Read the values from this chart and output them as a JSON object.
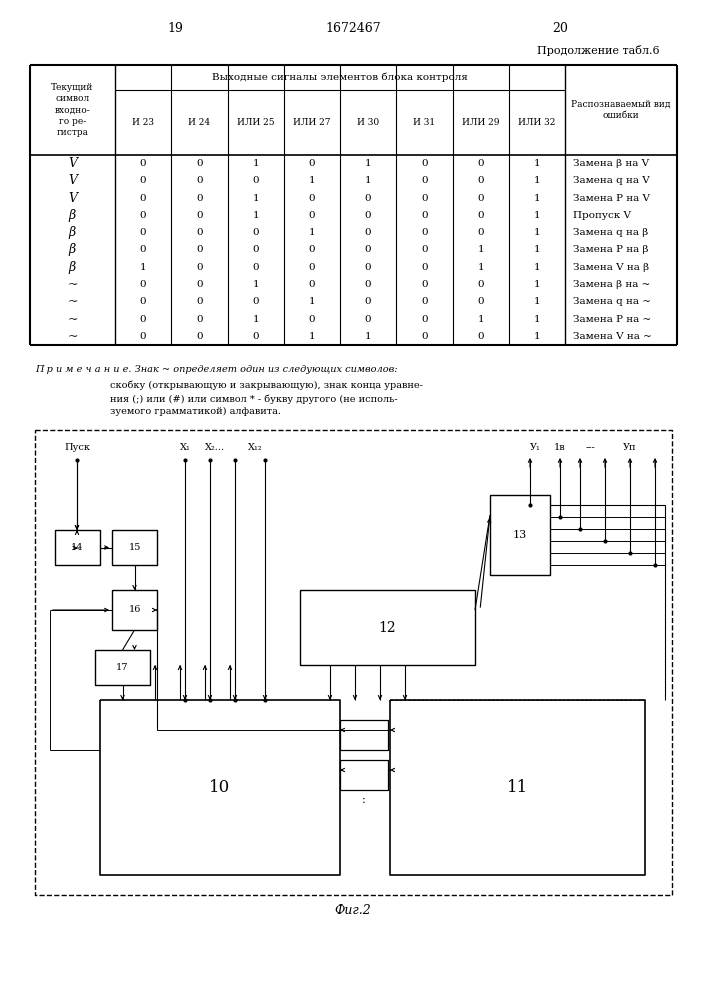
{
  "page_num_left": "19",
  "page_num_center": "1672467",
  "page_num_right": "20",
  "table_title": "Продолжение табл.6",
  "col_header_group": "Выходные сигналы элементов блока контроля",
  "col0_header": "Текущий\nсимвол\nвходно-\nго ре-\nгистра",
  "sub_headers": [
    "И 23",
    "И 24",
    "ИЛИ 25",
    "ИЛИ 27",
    "И 30",
    "И 31",
    "ИЛИ 29",
    "ИЛИ 32"
  ],
  "last_col_header": "Распознаваемый вид\nошибки",
  "rows": [
    [
      "V",
      "0",
      "0",
      "1",
      "0",
      "1",
      "0",
      "0",
      "1",
      "Замена β на V"
    ],
    [
      "V",
      "0",
      "0",
      "0",
      "1",
      "1",
      "0",
      "0",
      "1",
      "Замена q на V"
    ],
    [
      "V",
      "0",
      "0",
      "1",
      "0",
      "0",
      "0",
      "0",
      "1",
      "Замена P на V"
    ],
    [
      "β",
      "0",
      "0",
      "1",
      "0",
      "0",
      "0",
      "0",
      "1",
      "Пропуск V"
    ],
    [
      "β",
      "0",
      "0",
      "0",
      "1",
      "0",
      "0",
      "0",
      "1",
      "Замена q на β"
    ],
    [
      "β",
      "0",
      "0",
      "0",
      "0",
      "0",
      "0",
      "1",
      "1",
      "Замена P на β"
    ],
    [
      "β",
      "1",
      "0",
      "0",
      "0",
      "0",
      "0",
      "1",
      "1",
      "Замена V на β"
    ],
    [
      "~",
      "0",
      "0",
      "1",
      "0",
      "0",
      "0",
      "0",
      "1",
      "Замена β на ~"
    ],
    [
      "~",
      "0",
      "0",
      "0",
      "1",
      "0",
      "0",
      "0",
      "1",
      "Замена q на ~"
    ],
    [
      "~",
      "0",
      "0",
      "1",
      "0",
      "0",
      "0",
      "1",
      "1",
      "Замена P на ~"
    ],
    [
      "~",
      "0",
      "0",
      "0",
      "1",
      "1",
      "0",
      "0",
      "1",
      "Замена V на ~"
    ]
  ],
  "note_line1": "П р и м е ч а н и е. Знак ~ определяет один из следующих символов:",
  "note_line2": "скобку (открывающую и закрывающую), знак конца уравне-",
  "note_line3": "ния (;) или (#) или символ * - букву другого (не исполь-",
  "note_line4": "зуемого грамматикой) алфавита.",
  "fig_label": "Фиг.2"
}
